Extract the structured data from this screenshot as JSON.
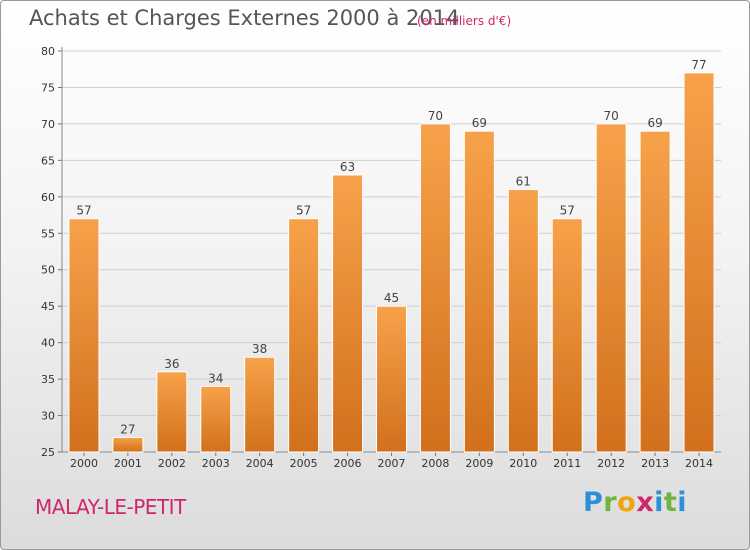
{
  "title": "Achats et Charges Externes 2000 à 2014",
  "subtitle": "(en milliers d'€)",
  "commune": "MALAY-LE-PETIT",
  "logo": {
    "p": "P",
    "r": "r",
    "o": "o",
    "x": "x",
    "i": "i",
    "t": "t",
    "i2": "i"
  },
  "colors": {
    "bar_light": "#f7a24a",
    "bar_dark": "#d2701c",
    "title": "#555555",
    "accent": "#d1266d"
  },
  "chart_data": {
    "type": "bar",
    "categories": [
      "2000",
      "2001",
      "2002",
      "2003",
      "2004",
      "2005",
      "2006",
      "2007",
      "2008",
      "2009",
      "2010",
      "2011",
      "2012",
      "2013",
      "2014"
    ],
    "values": [
      57,
      27,
      36,
      34,
      38,
      57,
      63,
      45,
      70,
      69,
      61,
      57,
      70,
      69,
      77
    ],
    "ylim": [
      25,
      80
    ],
    "yticks": [
      25,
      30,
      35,
      40,
      45,
      50,
      55,
      60,
      65,
      70,
      75,
      80
    ],
    "grid": true
  }
}
